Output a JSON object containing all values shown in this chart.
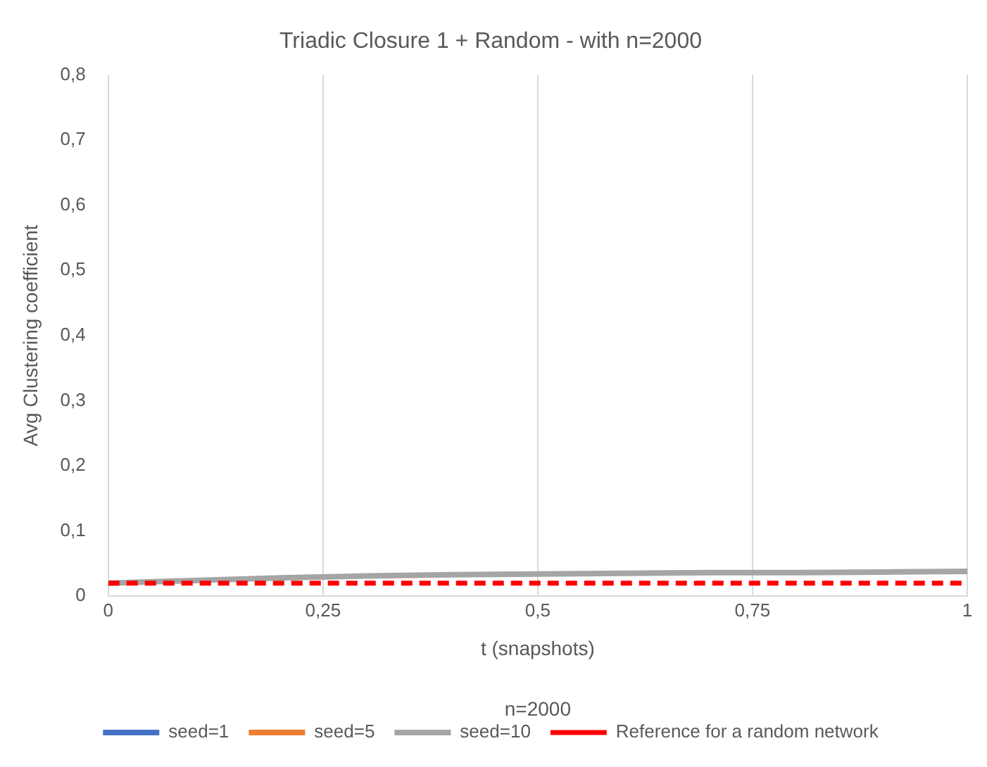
{
  "chart_data": {
    "type": "line",
    "title": "Triadic Closure 1 + Random - with n=2000",
    "xlabel": "t (snapshots)",
    "ylabel": "Avg Clustering coefficient",
    "annotations": [
      "n=2000"
    ],
    "x": [
      0,
      0.1,
      0.2,
      0.3,
      0.4,
      0.5,
      0.6,
      0.7,
      0.8,
      0.9,
      1
    ],
    "series": [
      {
        "name": "seed=1",
        "color": "#4472c4",
        "values": [
          null,
          null,
          null,
          null,
          null,
          null,
          null,
          null,
          null,
          null,
          null
        ]
      },
      {
        "name": "seed=5",
        "color": "#ed7d31",
        "values": [
          null,
          null,
          null,
          null,
          null,
          null,
          null,
          null,
          null,
          null,
          null
        ]
      },
      {
        "name": "seed=10",
        "color": "#a5a5a5",
        "values": [
          0.02,
          0.024,
          0.028,
          0.031,
          0.033,
          0.034,
          0.035,
          0.036,
          0.036,
          0.037,
          0.038
        ]
      },
      {
        "name": "Reference for a random network",
        "color": "#ff0000",
        "line_style": "dashed",
        "values": [
          0.02,
          0.02,
          0.02,
          0.02,
          0.02,
          0.02,
          0.02,
          0.02,
          0.02,
          0.02,
          0.02
        ]
      }
    ],
    "xlim": [
      0,
      1
    ],
    "xticks": [
      0,
      {
        "value": 0.25,
        "label": "0,25"
      },
      {
        "value": 0.5,
        "label": "0,5"
      },
      {
        "value": 0.75,
        "label": "0,75"
      },
      1
    ],
    "ylim": [
      0,
      0.8
    ],
    "yticks": [
      0,
      {
        "value": 0.1,
        "label": "0,1"
      },
      {
        "value": 0.2,
        "label": "0,2"
      },
      {
        "value": 0.3,
        "label": "0,3"
      },
      {
        "value": 0.4,
        "label": "0,4"
      },
      {
        "value": 0.5,
        "label": "0,5"
      },
      {
        "value": 0.6,
        "label": "0,6"
      },
      {
        "value": 0.7,
        "label": "0,7"
      },
      {
        "value": 0.8,
        "label": "0,8"
      }
    ],
    "grid": "x",
    "legend": "bottom",
    "marker": "none",
    "line_style": "solid"
  }
}
